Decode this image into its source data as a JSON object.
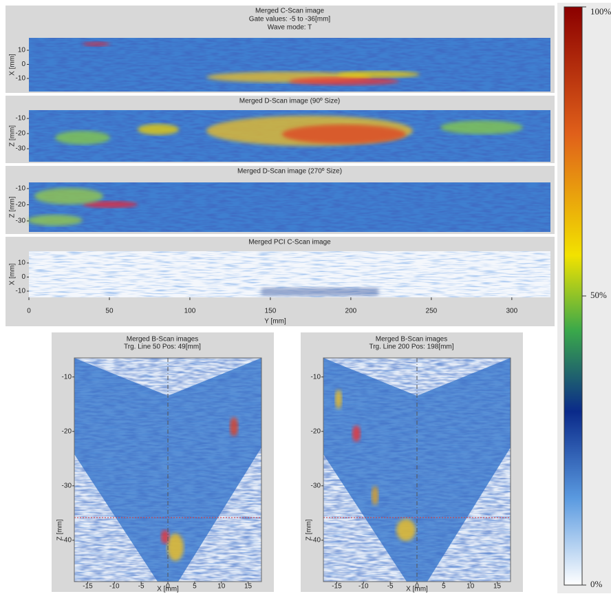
{
  "panels": [
    {
      "title": [
        "Merged C-Scan image",
        "Gate values: -5 to -36[mm]",
        "Wave mode: T"
      ],
      "y_label": "X [mm]",
      "yticks": [
        10,
        0,
        -10
      ],
      "ylim": [
        18.8,
        -19.3
      ]
    },
    {
      "title": [
        "Merged D-Scan image (90º Size)"
      ],
      "y_label": "Z [mm]",
      "yticks": [
        -10,
        -20,
        -30
      ],
      "ylim": [
        -4.5,
        -38.6
      ]
    },
    {
      "title": [
        "Merged D-Scan image (270º Size)"
      ],
      "y_label": "Z [mm]",
      "yticks": [
        -10,
        -20,
        -30
      ],
      "ylim": [
        -6.2,
        -36.8
      ]
    },
    {
      "title": [
        "Merged PCI C-Scan image"
      ],
      "y_label": "X [mm]",
      "yticks": [
        10,
        0,
        -10
      ],
      "ylim": [
        18.3,
        -14.4
      ]
    }
  ],
  "x_axis": {
    "label": "Y [mm]",
    "ticks": [
      0,
      50,
      100,
      150,
      200,
      250,
      300
    ],
    "lim": [
      0,
      324
    ]
  },
  "colorbar": {
    "lim": [
      0,
      100
    ],
    "ticks": [
      {
        "value": 100,
        "label": "100%"
      },
      {
        "value": 50,
        "label": "50%"
      },
      {
        "value": 0,
        "label": "0%"
      }
    ]
  },
  "bscans": [
    {
      "title": [
        "Merged B-Scan images",
        "Trg. Line 50 Pos: 49[mm]"
      ],
      "x_label": "X [mm]",
      "y_label": "Z [mm]",
      "xticks": [
        -15,
        -10,
        -5,
        0,
        5,
        10,
        15
      ],
      "yticks": [
        -10,
        -20,
        -30,
        -40
      ],
      "xlim": [
        -17.5,
        17.5
      ],
      "ylim": [
        -6.5,
        -47.6
      ]
    },
    {
      "title": [
        "Merged B-Scan images",
        "Trg. Line 200 Pos: 198[mm]"
      ],
      "x_label": "X [mm]",
      "y_label": "Z [mm]",
      "xticks": [
        -15,
        -10,
        -5,
        0,
        5,
        10,
        15
      ],
      "yticks": [
        -10,
        -20,
        -30,
        -40
      ],
      "xlim": [
        -17.5,
        17.5
      ],
      "ylim": [
        -6.5,
        -47.6
      ]
    }
  ]
}
